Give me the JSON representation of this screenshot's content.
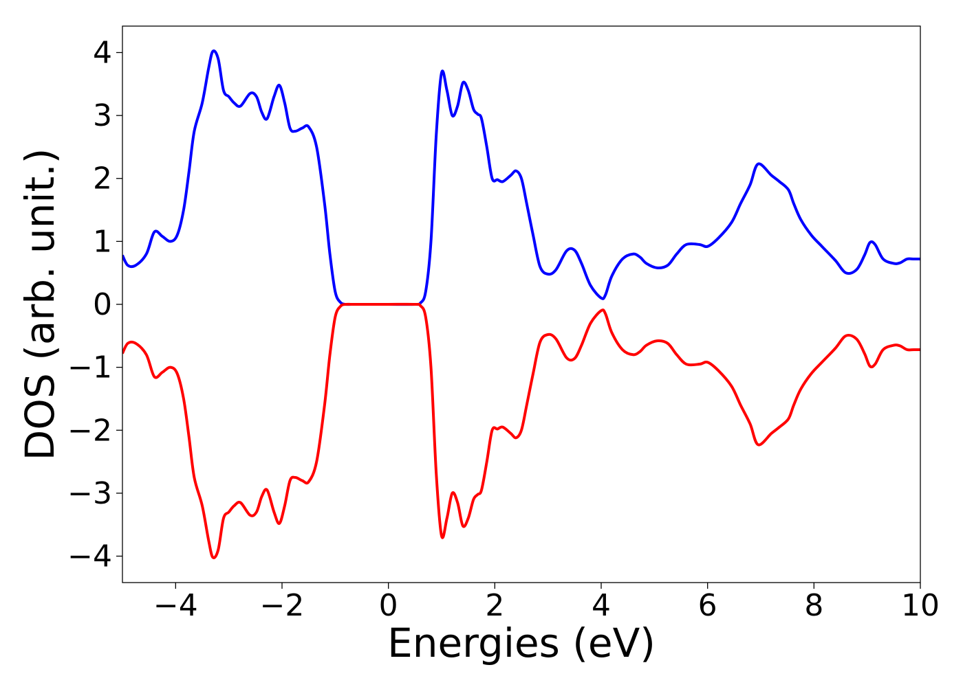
{
  "chart_data": {
    "type": "line",
    "title": "",
    "xlabel": "Energies (eV)",
    "ylabel": "DOS (arb. unit.)",
    "xlim": [
      -5,
      10
    ],
    "ylim": [
      -4.42,
      4.42
    ],
    "xticks": [
      -4,
      -2,
      0,
      2,
      4,
      6,
      8,
      10
    ],
    "xtick_labels": [
      "−4",
      "−2",
      "0",
      "2",
      "4",
      "6",
      "8",
      "10"
    ],
    "yticks": [
      4,
      3,
      2,
      1,
      0,
      -1,
      -2,
      -3,
      -4
    ],
    "ytick_labels": [
      "4",
      "3",
      "2",
      "1",
      "0",
      "−1",
      "−2",
      "−3",
      "−4"
    ],
    "grid": false,
    "legend": false,
    "series": [
      {
        "color": "#0000ff",
        "x": [
          -5.0,
          -4.9,
          -4.75,
          -4.55,
          -4.4,
          -4.25,
          -4.1,
          -3.97,
          -3.85,
          -3.75,
          -3.65,
          -3.5,
          -3.38,
          -3.3,
          -3.2,
          -3.1,
          -3.0,
          -2.9,
          -2.78,
          -2.6,
          -2.48,
          -2.38,
          -2.28,
          -2.15,
          -2.05,
          -1.95,
          -1.85,
          -1.75,
          -1.62,
          -1.5,
          -1.35,
          -1.2,
          -1.1,
          -1.0,
          -0.9,
          -0.8,
          -0.7,
          -0.6,
          -0.5,
          -0.4,
          0.0,
          0.5,
          0.6,
          0.7,
          0.8,
          0.9,
          1.0,
          1.1,
          1.2,
          1.3,
          1.4,
          1.5,
          1.6,
          1.68,
          1.75,
          1.85,
          1.95,
          2.05,
          2.15,
          2.3,
          2.4,
          2.5,
          2.6,
          2.72,
          2.85,
          3.0,
          3.15,
          3.35,
          3.5,
          3.63,
          3.8,
          4.0,
          4.08,
          4.2,
          4.4,
          4.6,
          4.73,
          4.85,
          5.05,
          5.25,
          5.42,
          5.6,
          5.85,
          6.0,
          6.2,
          6.45,
          6.62,
          6.8,
          6.95,
          7.2,
          7.35,
          7.52,
          7.62,
          7.75,
          7.95,
          8.15,
          8.4,
          8.6,
          8.8,
          8.95,
          9.05,
          9.15,
          9.3,
          9.5,
          9.62,
          9.75,
          9.88,
          10.0
        ],
        "y": [
          0.78,
          0.62,
          0.62,
          0.8,
          1.15,
          1.08,
          1.0,
          1.1,
          1.5,
          2.1,
          2.75,
          3.2,
          3.75,
          4.02,
          3.9,
          3.4,
          3.3,
          3.2,
          3.15,
          3.35,
          3.3,
          3.05,
          2.95,
          3.3,
          3.48,
          3.2,
          2.8,
          2.75,
          2.8,
          2.82,
          2.5,
          1.6,
          0.8,
          0.2,
          0.03,
          0.0,
          0.0,
          0.0,
          0.0,
          0.0,
          0.0,
          0.0,
          0.02,
          0.2,
          1.0,
          2.7,
          3.68,
          3.4,
          3.0,
          3.15,
          3.52,
          3.4,
          3.1,
          3.02,
          2.95,
          2.5,
          2.0,
          1.98,
          1.95,
          2.05,
          2.12,
          2.0,
          1.6,
          1.1,
          0.6,
          0.48,
          0.55,
          0.85,
          0.86,
          0.65,
          0.3,
          0.1,
          0.15,
          0.45,
          0.72,
          0.8,
          0.75,
          0.65,
          0.58,
          0.62,
          0.8,
          0.95,
          0.95,
          0.92,
          1.05,
          1.3,
          1.6,
          1.9,
          2.23,
          2.05,
          1.95,
          1.82,
          1.6,
          1.35,
          1.1,
          0.92,
          0.7,
          0.5,
          0.55,
          0.78,
          0.98,
          0.95,
          0.72,
          0.65,
          0.66,
          0.72,
          0.72,
          0.72
        ]
      },
      {
        "color": "#ff0000",
        "x": [
          -5.0,
          -4.9,
          -4.75,
          -4.55,
          -4.4,
          -4.25,
          -4.1,
          -3.97,
          -3.85,
          -3.75,
          -3.65,
          -3.5,
          -3.38,
          -3.3,
          -3.2,
          -3.1,
          -3.0,
          -2.9,
          -2.78,
          -2.6,
          -2.48,
          -2.38,
          -2.28,
          -2.15,
          -2.05,
          -1.95,
          -1.85,
          -1.75,
          -1.62,
          -1.5,
          -1.35,
          -1.2,
          -1.1,
          -1.0,
          -0.9,
          -0.8,
          -0.7,
          -0.6,
          -0.5,
          -0.4,
          0.0,
          0.5,
          0.6,
          0.7,
          0.8,
          0.9,
          1.0,
          1.1,
          1.2,
          1.3,
          1.4,
          1.5,
          1.6,
          1.68,
          1.75,
          1.85,
          1.95,
          2.05,
          2.15,
          2.3,
          2.4,
          2.5,
          2.6,
          2.72,
          2.85,
          3.0,
          3.15,
          3.35,
          3.5,
          3.63,
          3.8,
          4.0,
          4.08,
          4.2,
          4.4,
          4.6,
          4.73,
          4.85,
          5.05,
          5.25,
          5.42,
          5.6,
          5.85,
          6.0,
          6.2,
          6.45,
          6.62,
          6.8,
          6.95,
          7.2,
          7.35,
          7.52,
          7.62,
          7.75,
          7.95,
          8.15,
          8.4,
          8.6,
          8.8,
          8.95,
          9.05,
          9.15,
          9.3,
          9.5,
          9.62,
          9.75,
          9.88,
          10.0
        ],
        "y": [
          -0.78,
          -0.62,
          -0.62,
          -0.8,
          -1.15,
          -1.08,
          -1.0,
          -1.1,
          -1.5,
          -2.1,
          -2.75,
          -3.2,
          -3.75,
          -4.02,
          -3.9,
          -3.4,
          -3.3,
          -3.2,
          -3.15,
          -3.35,
          -3.3,
          -3.05,
          -2.95,
          -3.3,
          -3.48,
          -3.2,
          -2.8,
          -2.75,
          -2.8,
          -2.82,
          -2.5,
          -1.6,
          -0.8,
          -0.2,
          -0.03,
          0.0,
          0.0,
          0.0,
          0.0,
          0.0,
          0.0,
          0.0,
          -0.02,
          -0.2,
          -1.0,
          -2.7,
          -3.68,
          -3.4,
          -3.0,
          -3.15,
          -3.52,
          -3.4,
          -3.1,
          -3.02,
          -2.95,
          -2.5,
          -2.0,
          -1.98,
          -1.95,
          -2.05,
          -2.12,
          -2.0,
          -1.6,
          -1.1,
          -0.6,
          -0.48,
          -0.55,
          -0.85,
          -0.86,
          -0.65,
          -0.3,
          -0.1,
          -0.15,
          -0.45,
          -0.72,
          -0.8,
          -0.75,
          -0.65,
          -0.58,
          -0.62,
          -0.8,
          -0.95,
          -0.95,
          -0.92,
          -1.05,
          -1.3,
          -1.6,
          -1.9,
          -2.23,
          -2.05,
          -1.95,
          -1.82,
          -1.6,
          -1.35,
          -1.1,
          -0.92,
          -0.7,
          -0.5,
          -0.55,
          -0.78,
          -0.98,
          -0.95,
          -0.72,
          -0.65,
          -0.66,
          -0.72,
          -0.72,
          -0.72
        ]
      }
    ]
  }
}
